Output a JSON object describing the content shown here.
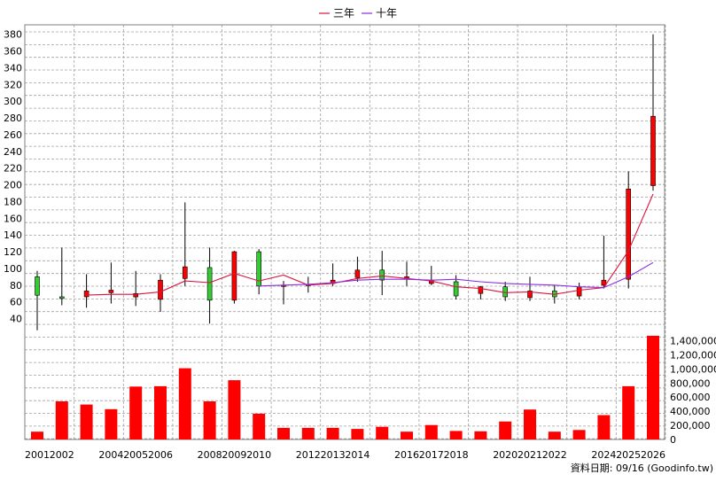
{
  "legend": {
    "items": [
      {
        "label": "三年",
        "color": "#dc143c"
      },
      {
        "label": "十年",
        "color": "#8a2be2"
      }
    ]
  },
  "footer": {
    "source": "資料日期: 09/16  (Goodinfo.tw)"
  },
  "colors": {
    "up_body": "#ff0000",
    "down_body": "#33cc33",
    "volume_bar": "#ff0000",
    "grid": "#a0a0a0",
    "wick": "#000000"
  },
  "chart_data": {
    "type": "candlestick",
    "x_tick_labels": [
      "2001",
      "2002",
      "2004",
      "2005",
      "2006",
      "2008",
      "2009",
      "2010",
      "2012",
      "2013",
      "2014",
      "2016",
      "2017",
      "2018",
      "2020",
      "2021",
      "2022",
      "2024",
      "2025",
      "2026"
    ],
    "years": [
      2001,
      2002,
      2003,
      2004,
      2005,
      2006,
      2007,
      2008,
      2009,
      2010,
      2011,
      2012,
      2013,
      2014,
      2015,
      2016,
      2017,
      2018,
      2019,
      2020,
      2021,
      2022,
      2023,
      2024,
      2025,
      2026
    ],
    "price": {
      "ylim": [
        30,
        385
      ],
      "ticks": [
        40,
        60,
        80,
        100,
        120,
        140,
        160,
        180,
        200,
        220,
        240,
        260,
        280,
        300,
        320,
        340,
        360,
        380
      ],
      "ohlc": [
        {
          "open": 90,
          "high": 97,
          "low": 26,
          "close": 68
        },
        {
          "open": 66,
          "high": 125,
          "low": 56,
          "close": 64
        },
        {
          "open": 66,
          "high": 93,
          "low": 53,
          "close": 73
        },
        {
          "open": 71,
          "high": 107,
          "low": 58,
          "close": 74
        },
        {
          "open": 66,
          "high": 97,
          "low": 55,
          "close": 70
        },
        {
          "open": 63,
          "high": 93,
          "low": 48,
          "close": 86
        },
        {
          "open": 88,
          "high": 179,
          "low": 79,
          "close": 102
        },
        {
          "open": 101,
          "high": 125,
          "low": 34,
          "close": 62
        },
        {
          "open": 62,
          "high": 121,
          "low": 58,
          "close": 120
        },
        {
          "open": 120,
          "high": 123,
          "low": 69,
          "close": 79
        },
        {
          "open": 79,
          "high": 85,
          "low": 57,
          "close": 80
        },
        {
          "open": 80,
          "high": 90,
          "low": 71,
          "close": 81
        },
        {
          "open": 82,
          "high": 106,
          "low": 79,
          "close": 86
        },
        {
          "open": 89,
          "high": 114,
          "low": 84,
          "close": 98
        },
        {
          "open": 98,
          "high": 121,
          "low": 68,
          "close": 86
        },
        {
          "open": 88,
          "high": 108,
          "low": 79,
          "close": 90
        },
        {
          "open": 82,
          "high": 103,
          "low": 80,
          "close": 86
        },
        {
          "open": 84,
          "high": 92,
          "low": 63,
          "close": 67
        },
        {
          "open": 70,
          "high": 79,
          "low": 63,
          "close": 78
        },
        {
          "open": 78,
          "high": 84,
          "low": 61,
          "close": 66
        },
        {
          "open": 65,
          "high": 90,
          "low": 61,
          "close": 73
        },
        {
          "open": 73,
          "high": 80,
          "low": 58,
          "close": 66
        },
        {
          "open": 67,
          "high": 83,
          "low": 63,
          "close": 78
        },
        {
          "open": 80,
          "high": 139,
          "low": 76,
          "close": 86
        },
        {
          "open": 87,
          "high": 216,
          "low": 76,
          "close": 195
        },
        {
          "open": 199,
          "high": 380,
          "low": 193,
          "close": 282
        }
      ],
      "series": [
        {
          "name": "三年",
          "years": [
            2003,
            2004,
            2005,
            2006,
            2007,
            2008,
            2009,
            2010,
            2011,
            2012,
            2013,
            2014,
            2015,
            2016,
            2017,
            2018,
            2019,
            2020,
            2021,
            2022,
            2023,
            2024,
            2025,
            2026
          ],
          "values": [
            68,
            69,
            69,
            72,
            85,
            83,
            94,
            85,
            92,
            80,
            82,
            88,
            91,
            88,
            85,
            78,
            76,
            71,
            72,
            69,
            74,
            77,
            121,
            189
          ]
        },
        {
          "name": "十年",
          "years": [
            2010,
            2011,
            2012,
            2013,
            2014,
            2015,
            2016,
            2017,
            2018,
            2019,
            2020,
            2021,
            2022,
            2023,
            2024,
            2025,
            2026
          ],
          "values": [
            79,
            80,
            81,
            83,
            86,
            87,
            87,
            86,
            87,
            84,
            82,
            81,
            80,
            78,
            77,
            90,
            107
          ]
        }
      ]
    },
    "volume": {
      "ylim": [
        0,
        1470000
      ],
      "ticks": [
        0,
        200000,
        400000,
        600000,
        800000,
        1000000,
        1200000,
        1400000
      ],
      "tick_labels": [
        "0",
        "200,000",
        "400,000",
        "600,000",
        "800,000",
        "1,000,000",
        "1,200,000",
        "1,400,000"
      ],
      "values": [
        110000,
        540000,
        495000,
        430000,
        750000,
        755000,
        1010000,
        540000,
        840000,
        365000,
        165000,
        165000,
        165000,
        150000,
        180000,
        110000,
        205000,
        120000,
        115000,
        255000,
        425000,
        110000,
        135000,
        345000,
        755000,
        1470000
      ]
    }
  }
}
